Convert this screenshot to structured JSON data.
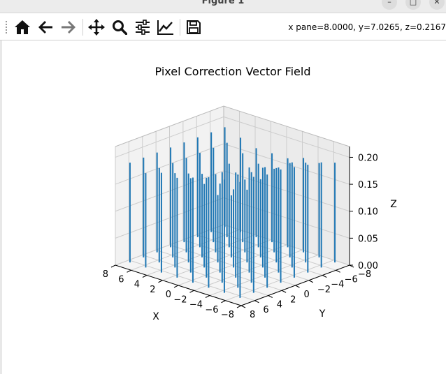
{
  "window": {
    "title": "Figure 1",
    "minimize_label": "–",
    "maximize_label": "□",
    "close_label": "✕"
  },
  "toolbar": {
    "buttons": [
      {
        "name": "home",
        "icon": "home-icon"
      },
      {
        "name": "back",
        "icon": "arrow-left-icon"
      },
      {
        "name": "forward",
        "icon": "arrow-right-icon"
      },
      {
        "name": "pan",
        "icon": "move-icon"
      },
      {
        "name": "zoom",
        "icon": "zoom-icon"
      },
      {
        "name": "configure-subplots",
        "icon": "sliders-icon"
      },
      {
        "name": "edit-axis",
        "icon": "line-chart-icon"
      },
      {
        "name": "save",
        "icon": "save-icon"
      }
    ],
    "coords": "x pane=8.0000, y=7.0265, z=0.2167"
  },
  "colors": {
    "vector": "#1f77b4",
    "pane_left": "#f2f2f2",
    "pane_right": "#ebebeb",
    "pane_floor": "#f5f5f5",
    "grid": "#cccccc"
  },
  "chart_data": {
    "type": "quiver3d",
    "title": "Pixel Correction Vector Field",
    "xlabel": "X",
    "ylabel": "Y",
    "zlabel": "Z",
    "xlim": [
      -8,
      8
    ],
    "ylim": [
      -8,
      8
    ],
    "zlim": [
      0,
      0.22
    ],
    "xticks": [
      "8",
      "6",
      "4",
      "2",
      "0",
      "−2",
      "−4",
      "−6",
      "−8"
    ],
    "yticks": [
      "8",
      "6",
      "4",
      "2",
      "0",
      "−2",
      "−4",
      "−6",
      "−8"
    ],
    "zticks": [
      "0.00",
      "0.05",
      "0.10",
      "0.15",
      "0.20"
    ],
    "grid": true,
    "vectors_note_excluded": true,
    "grid_vectors": {
      "x": [
        -7,
        -5,
        -3,
        -1,
        1,
        3,
        5,
        7
      ],
      "y": [
        -7,
        -5,
        -3,
        -1,
        1,
        3,
        5,
        7
      ],
      "z_top": [
        [
          0.19,
          0.2,
          0.205,
          0.21,
          0.215,
          0.215,
          0.22,
          0.22
        ],
        [
          0.18,
          0.19,
          0.2,
          0.2,
          0.21,
          0.21,
          0.215,
          0.215
        ],
        [
          0.18,
          0.18,
          0.18,
          0.19,
          0.2,
          0.2,
          0.21,
          0.21
        ],
        [
          0.17,
          0.16,
          0.15,
          0.14,
          0.15,
          0.17,
          0.19,
          0.2
        ],
        [
          0.17,
          0.16,
          0.14,
          0.12,
          0.13,
          0.16,
          0.18,
          0.19
        ],
        [
          0.17,
          0.17,
          0.16,
          0.15,
          0.16,
          0.17,
          0.18,
          0.19
        ],
        [
          0.18,
          0.18,
          0.18,
          0.18,
          0.18,
          0.18,
          0.18,
          0.18
        ],
        [
          0.19,
          0.19,
          0.19,
          0.19,
          0.19,
          0.19,
          0.19,
          0.19
        ]
      ]
    }
  }
}
